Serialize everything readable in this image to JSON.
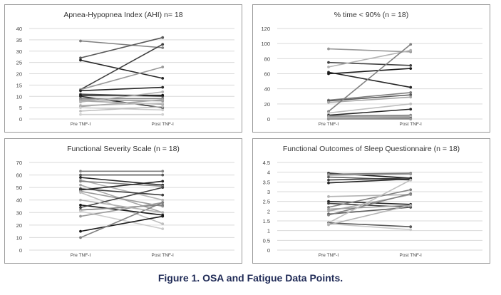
{
  "caption": "Figure 1. OSA and Fatigue Data Points.",
  "chart_data": [
    {
      "type": "line",
      "title": "Apnea-Hypopnea Index (AHI) n= 18",
      "categories": [
        "Pre TNF-I",
        "Post TNF-I"
      ],
      "ylim": [
        0,
        40
      ],
      "yticks": [
        0,
        5,
        10,
        15,
        20,
        25,
        30,
        35,
        40
      ],
      "grid": true,
      "series": [
        {
          "values": [
            34.5,
            31.5
          ],
          "color": "#808080"
        },
        {
          "values": [
            27,
            36
          ],
          "color": "#595959"
        },
        {
          "values": [
            26,
            18
          ],
          "color": "#262626"
        },
        {
          "values": [
            13,
            33
          ],
          "color": "#404040"
        },
        {
          "values": [
            13,
            23
          ],
          "color": "#999999"
        },
        {
          "values": [
            12.5,
            14
          ],
          "color": "#262626"
        },
        {
          "values": [
            11,
            10
          ],
          "color": "#595959"
        },
        {
          "values": [
            10.5,
            10.5
          ],
          "color": "#1a1a1a"
        },
        {
          "values": [
            10,
            5
          ],
          "color": "#262626"
        },
        {
          "values": [
            9,
            9
          ],
          "color": "#808080"
        },
        {
          "values": [
            8.5,
            8
          ],
          "color": "#999999"
        },
        {
          "values": [
            8,
            6.5
          ],
          "color": "#a6a6a6"
        },
        {
          "values": [
            7.5,
            12
          ],
          "color": "#b3b3b3"
        },
        {
          "values": [
            6,
            7
          ],
          "color": "#bfbfbf"
        },
        {
          "values": [
            5.5,
            8.5
          ],
          "color": "#a6a6a6"
        },
        {
          "values": [
            5,
            4
          ],
          "color": "#cccccc"
        },
        {
          "values": [
            3.5,
            5.5
          ],
          "color": "#bfbfbf"
        },
        {
          "values": [
            2,
            2
          ],
          "color": "#d0d0d0"
        }
      ]
    },
    {
      "type": "line",
      "title": "% time < 90% (n = 18)",
      "categories": [
        "Pre TNF-I",
        "Post TNF-I"
      ],
      "ylim": [
        0,
        120
      ],
      "yticks": [
        0,
        20,
        40,
        60,
        80,
        100,
        120
      ],
      "grid": true,
      "series": [
        {
          "values": [
            93,
            89
          ],
          "color": "#999999"
        },
        {
          "values": [
            75,
            71
          ],
          "color": "#404040"
        },
        {
          "values": [
            69,
            91
          ],
          "color": "#b3b3b3"
        },
        {
          "values": [
            62,
            42
          ],
          "color": "#262626"
        },
        {
          "values": [
            60,
            67
          ],
          "color": "#1a1a1a"
        },
        {
          "values": [
            25,
            35
          ],
          "color": "#808080"
        },
        {
          "values": [
            24,
            32
          ],
          "color": "#595959"
        },
        {
          "values": [
            22,
            29
          ],
          "color": "#a6a6a6"
        },
        {
          "values": [
            10,
            99
          ],
          "color": "#808080"
        },
        {
          "values": [
            8,
            20
          ],
          "color": "#bfbfbf"
        },
        {
          "values": [
            5,
            13
          ],
          "color": "#262626"
        },
        {
          "values": [
            4,
            5
          ],
          "color": "#808080"
        },
        {
          "values": [
            3,
            3
          ],
          "color": "#999999"
        },
        {
          "values": [
            2,
            4
          ],
          "color": "#a6a6a6"
        },
        {
          "values": [
            1,
            2
          ],
          "color": "#bfbfbf"
        },
        {
          "values": [
            0,
            1
          ],
          "color": "#595959"
        },
        {
          "values": [
            0,
            0
          ],
          "color": "#808080"
        },
        {
          "values": [
            0,
            0
          ],
          "color": "#999999"
        }
      ]
    },
    {
      "type": "line",
      "title": "Functional Severity Scale (n = 18)",
      "categories": [
        "Pre TNF-I",
        "Post TNF-I"
      ],
      "ylim": [
        0,
        70
      ],
      "yticks": [
        0,
        10,
        20,
        30,
        40,
        50,
        60,
        70
      ],
      "grid": true,
      "series": [
        {
          "values": [
            63,
            63
          ],
          "color": "#808080"
        },
        {
          "values": [
            60,
            60
          ],
          "color": "#595959"
        },
        {
          "values": [
            58,
            52
          ],
          "color": "#262626"
        },
        {
          "values": [
            56,
            40
          ],
          "color": "#b3b3b3"
        },
        {
          "values": [
            55,
            51
          ],
          "color": "#808080"
        },
        {
          "values": [
            52,
            30
          ],
          "color": "#a6a6a6"
        },
        {
          "values": [
            49,
            44
          ],
          "color": "#404040"
        },
        {
          "values": [
            48,
            55
          ],
          "color": "#262626"
        },
        {
          "values": [
            47,
            35
          ],
          "color": "#999999"
        },
        {
          "values": [
            46,
            21
          ],
          "color": "#bfbfbf"
        },
        {
          "values": [
            36,
            28
          ],
          "color": "#1a1a1a"
        },
        {
          "values": [
            34,
            50
          ],
          "color": "#404040"
        },
        {
          "values": [
            32,
            36
          ],
          "color": "#808080"
        },
        {
          "values": [
            31,
            17
          ],
          "color": "#cccccc"
        },
        {
          "values": [
            27,
            38
          ],
          "color": "#999999"
        },
        {
          "values": [
            15,
            27
          ],
          "color": "#1a1a1a"
        },
        {
          "values": [
            10,
            38
          ],
          "color": "#808080"
        },
        {
          "values": [
            40,
            30
          ],
          "color": "#b3b3b3"
        }
      ]
    },
    {
      "type": "line",
      "title": "Functional Outcomes of Sleep Questionnaire (n = 18)",
      "categories": [
        "Pre TNF-I",
        "Post TNF-I"
      ],
      "ylim": [
        0,
        4.5
      ],
      "yticks": [
        0,
        0.5,
        1,
        1.5,
        2,
        2.5,
        3,
        3.5,
        4,
        4.5
      ],
      "ytick_labels": [
        "0",
        "0.5",
        "1",
        "1.5",
        "2",
        "2.5",
        "3",
        "3.5",
        "4",
        "4.5"
      ],
      "grid": true,
      "series": [
        {
          "values": [
            3.95,
            3.7
          ],
          "color": "#1a1a1a"
        },
        {
          "values": [
            3.9,
            3.95
          ],
          "color": "#808080"
        },
        {
          "values": [
            3.85,
            3.9
          ],
          "color": "#999999"
        },
        {
          "values": [
            3.75,
            3.6
          ],
          "color": "#595959"
        },
        {
          "values": [
            3.6,
            3.7
          ],
          "color": "#404040"
        },
        {
          "values": [
            3.45,
            3.65
          ],
          "color": "#262626"
        },
        {
          "values": [
            2.75,
            2.85
          ],
          "color": "#b3b3b3"
        },
        {
          "values": [
            2.5,
            2.35
          ],
          "color": "#262626"
        },
        {
          "values": [
            2.4,
            2.2
          ],
          "color": "#404040"
        },
        {
          "values": [
            2.2,
            3.1
          ],
          "color": "#808080"
        },
        {
          "values": [
            2.1,
            2.3
          ],
          "color": "#999999"
        },
        {
          "values": [
            2.0,
            2.85
          ],
          "color": "#a6a6a6"
        },
        {
          "values": [
            1.85,
            2.2
          ],
          "color": "#595959"
        },
        {
          "values": [
            1.8,
            2.9
          ],
          "color": "#808080"
        },
        {
          "values": [
            1.4,
            3.6
          ],
          "color": "#bfbfbf"
        },
        {
          "values": [
            1.4,
            1.2
          ],
          "color": "#595959"
        },
        {
          "values": [
            1.35,
            1.05
          ],
          "color": "#cccccc"
        },
        {
          "values": [
            1.3,
            2.3
          ],
          "color": "#b3b3b3"
        }
      ]
    }
  ]
}
